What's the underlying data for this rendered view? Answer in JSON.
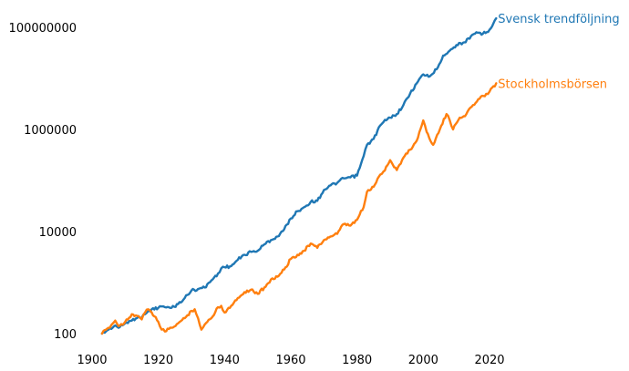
{
  "chart_data": {
    "type": "line",
    "title": "",
    "xlabel": "",
    "ylabel": "",
    "yscale": "log",
    "xlim": [
      1897,
      2024
    ],
    "ylim": [
      70,
      200000000
    ],
    "grid": false,
    "legend": "series names printed at line ends (right side)",
    "xticks": [
      1900,
      1920,
      1940,
      1960,
      1980,
      2000,
      2020
    ],
    "xtick_labels": [
      "1900",
      "1920",
      "1940",
      "1960",
      "1980",
      "2000",
      "2020"
    ],
    "yticks": [
      100,
      10000,
      1000000,
      100000000
    ],
    "ytick_labels": [
      "100",
      "10000",
      "1000000",
      "100000000"
    ],
    "series": [
      {
        "name": "Svensk trendföljning",
        "color": "#1f77b4",
        "x": [
          1903,
          1905,
          1907,
          1908,
          1910,
          1912,
          1914,
          1915,
          1916,
          1917,
          1918,
          1920,
          1921,
          1922,
          1924,
          1926,
          1928,
          1930,
          1932,
          1934,
          1936,
          1938,
          1939,
          1940,
          1942,
          1944,
          1946,
          1948,
          1950,
          1952,
          1954,
          1956,
          1958,
          1960,
          1962,
          1964,
          1966,
          1968,
          1970,
          1972,
          1974,
          1976,
          1978,
          1980,
          1982,
          1983,
          1985,
          1987,
          1988,
          1990,
          1992,
          1994,
          1996,
          1998,
          2000,
          2002,
          2004,
          2006,
          2008,
          2010,
          2012,
          2014,
          2016,
          2018,
          2020,
          2022
        ],
        "y": [
          100,
          120,
          145,
          130,
          160,
          180,
          220,
          205,
          240,
          280,
          300,
          320,
          340,
          330,
          320,
          380,
          500,
          700,
          750,
          800,
          1100,
          1500,
          1900,
          2000,
          2100,
          2800,
          3500,
          4000,
          4200,
          5600,
          6800,
          8000,
          11000,
          18000,
          25000,
          30000,
          38000,
          40000,
          65000,
          80000,
          90000,
          110000,
          115000,
          125000,
          300000,
          500000,
          650000,
          1200000,
          1400000,
          1700000,
          2000000,
          3000000,
          5000000,
          8000000,
          12000000,
          11000000,
          15000000,
          28000000,
          35000000,
          45000000,
          50000000,
          60000000,
          80000000,
          75000000,
          90000000,
          150000000
        ]
      },
      {
        "name": "Stockholmsbörsen",
        "color": "#ff7f0e",
        "x": [
          1903,
          1905,
          1907,
          1908,
          1910,
          1912,
          1914,
          1915,
          1916,
          1917,
          1918,
          1920,
          1921,
          1922,
          1924,
          1926,
          1928,
          1930,
          1931,
          1932,
          1933,
          1934,
          1936,
          1938,
          1939,
          1940,
          1942,
          1944,
          1946,
          1948,
          1950,
          1952,
          1954,
          1956,
          1958,
          1960,
          1962,
          1964,
          1966,
          1968,
          1970,
          1972,
          1974,
          1976,
          1978,
          1980,
          1982,
          1983,
          1985,
          1987,
          1988,
          1990,
          1992,
          1994,
          1996,
          1998,
          2000,
          2001,
          2003,
          2005,
          2007,
          2008,
          2009,
          2011,
          2013,
          2015,
          2017,
          2019,
          2020,
          2022
        ],
        "y": [
          100,
          130,
          180,
          140,
          170,
          240,
          220,
          190,
          260,
          300,
          260,
          170,
          120,
          110,
          130,
          160,
          200,
          280,
          300,
          200,
          120,
          150,
          200,
          330,
          350,
          260,
          350,
          500,
          650,
          730,
          600,
          800,
          1150,
          1300,
          1800,
          2900,
          3500,
          4200,
          5800,
          4800,
          6800,
          8000,
          9000,
          14000,
          13000,
          17000,
          30000,
          60000,
          75000,
          130000,
          150000,
          250000,
          160000,
          280000,
          400000,
          600000,
          1500000,
          900000,
          500000,
          1000000,
          2000000,
          1500000,
          1000000,
          1700000,
          2000000,
          3000000,
          4000000,
          5000000,
          5500000,
          8000000
        ]
      }
    ]
  }
}
